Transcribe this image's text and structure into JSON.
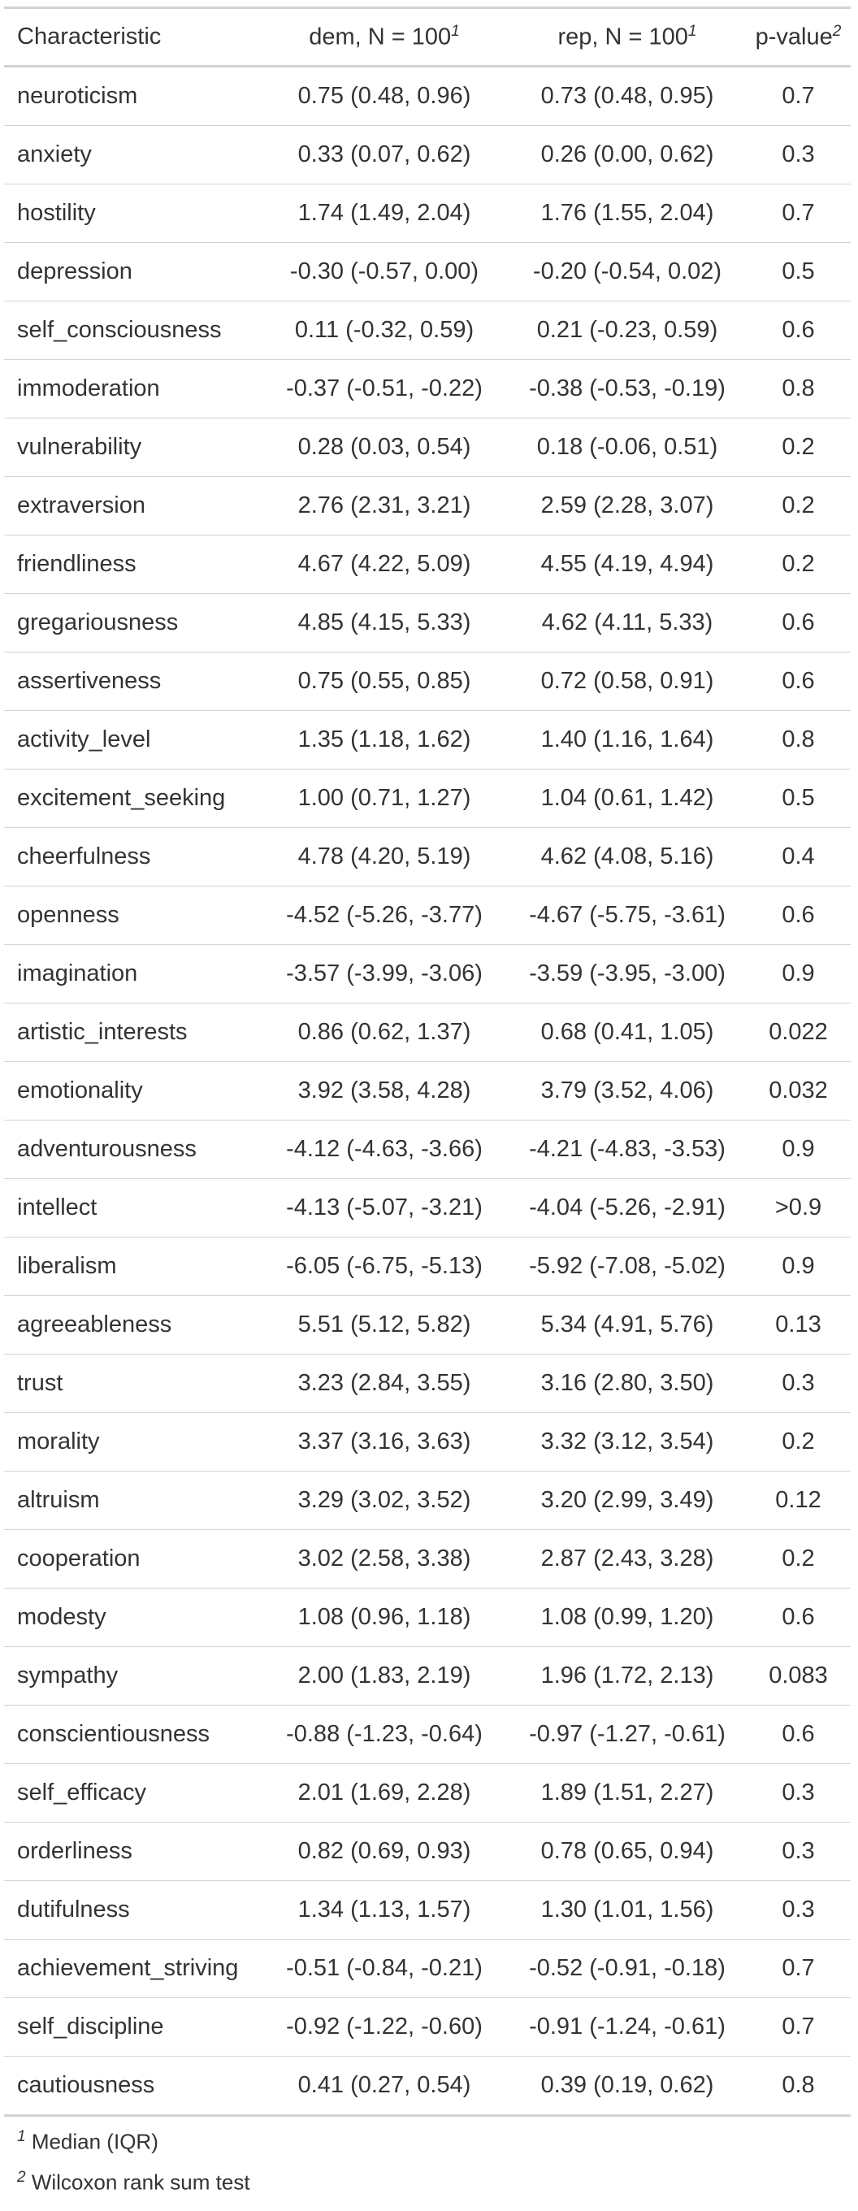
{
  "table": {
    "header": [
      {
        "label": "Characteristic"
      },
      {
        "label": "dem, N = 100",
        "footnote": "1"
      },
      {
        "label": "rep, N = 100",
        "footnote": "1"
      },
      {
        "label": "p-value",
        "footnote": "2"
      }
    ],
    "rows": [
      [
        "neuroticism",
        "0.75 (0.48, 0.96)",
        "0.73 (0.48, 0.95)",
        "0.7"
      ],
      [
        "anxiety",
        "0.33 (0.07, 0.62)",
        "0.26 (0.00, 0.62)",
        "0.3"
      ],
      [
        "hostility",
        "1.74 (1.49, 2.04)",
        "1.76 (1.55, 2.04)",
        "0.7"
      ],
      [
        "depression",
        "-0.30 (-0.57, 0.00)",
        "-0.20 (-0.54, 0.02)",
        "0.5"
      ],
      [
        "self_consciousness",
        "0.11 (-0.32, 0.59)",
        "0.21 (-0.23, 0.59)",
        "0.6"
      ],
      [
        "immoderation",
        "-0.37 (-0.51, -0.22)",
        "-0.38 (-0.53, -0.19)",
        "0.8"
      ],
      [
        "vulnerability",
        "0.28 (0.03, 0.54)",
        "0.18 (-0.06, 0.51)",
        "0.2"
      ],
      [
        "extraversion",
        "2.76 (2.31, 3.21)",
        "2.59 (2.28, 3.07)",
        "0.2"
      ],
      [
        "friendliness",
        "4.67 (4.22, 5.09)",
        "4.55 (4.19, 4.94)",
        "0.2"
      ],
      [
        "gregariousness",
        "4.85 (4.15, 5.33)",
        "4.62 (4.11, 5.33)",
        "0.6"
      ],
      [
        "assertiveness",
        "0.75 (0.55, 0.85)",
        "0.72 (0.58, 0.91)",
        "0.6"
      ],
      [
        "activity_level",
        "1.35 (1.18, 1.62)",
        "1.40 (1.16, 1.64)",
        "0.8"
      ],
      [
        "excitement_seeking",
        "1.00 (0.71, 1.27)",
        "1.04 (0.61, 1.42)",
        "0.5"
      ],
      [
        "cheerfulness",
        "4.78 (4.20, 5.19)",
        "4.62 (4.08, 5.16)",
        "0.4"
      ],
      [
        "openness",
        "-4.52 (-5.26, -3.77)",
        "-4.67 (-5.75, -3.61)",
        "0.6"
      ],
      [
        "imagination",
        "-3.57 (-3.99, -3.06)",
        "-3.59 (-3.95, -3.00)",
        "0.9"
      ],
      [
        "artistic_interests",
        "0.86 (0.62, 1.37)",
        "0.68 (0.41, 1.05)",
        "0.022"
      ],
      [
        "emotionality",
        "3.92 (3.58, 4.28)",
        "3.79 (3.52, 4.06)",
        "0.032"
      ],
      [
        "adventurousness",
        "-4.12 (-4.63, -3.66)",
        "-4.21 (-4.83, -3.53)",
        "0.9"
      ],
      [
        "intellect",
        "-4.13 (-5.07, -3.21)",
        "-4.04 (-5.26, -2.91)",
        ">0.9"
      ],
      [
        "liberalism",
        "-6.05 (-6.75, -5.13)",
        "-5.92 (-7.08, -5.02)",
        "0.9"
      ],
      [
        "agreeableness",
        "5.51 (5.12, 5.82)",
        "5.34 (4.91, 5.76)",
        "0.13"
      ],
      [
        "trust",
        "3.23 (2.84, 3.55)",
        "3.16 (2.80, 3.50)",
        "0.3"
      ],
      [
        "morality",
        "3.37 (3.16, 3.63)",
        "3.32 (3.12, 3.54)",
        "0.2"
      ],
      [
        "altruism",
        "3.29 (3.02, 3.52)",
        "3.20 (2.99, 3.49)",
        "0.12"
      ],
      [
        "cooperation",
        "3.02 (2.58, 3.38)",
        "2.87 (2.43, 3.28)",
        "0.2"
      ],
      [
        "modesty",
        "1.08 (0.96, 1.18)",
        "1.08 (0.99, 1.20)",
        "0.6"
      ],
      [
        "sympathy",
        "2.00 (1.83, 2.19)",
        "1.96 (1.72, 2.13)",
        "0.083"
      ],
      [
        "conscientiousness",
        "-0.88 (-1.23, -0.64)",
        "-0.97 (-1.27, -0.61)",
        "0.6"
      ],
      [
        "self_efficacy",
        "2.01 (1.69, 2.28)",
        "1.89 (1.51, 2.27)",
        "0.3"
      ],
      [
        "orderliness",
        "0.82 (0.69, 0.93)",
        "0.78 (0.65, 0.94)",
        "0.3"
      ],
      [
        "dutifulness",
        "1.34 (1.13, 1.57)",
        "1.30 (1.01, 1.56)",
        "0.3"
      ],
      [
        "achievement_striving",
        "-0.51 (-0.84, -0.21)",
        "-0.52 (-0.91, -0.18)",
        "0.7"
      ],
      [
        "self_discipline",
        "-0.92 (-1.22, -0.60)",
        "-0.91 (-1.24, -0.61)",
        "0.7"
      ],
      [
        "cautiousness",
        "0.41 (0.27, 0.54)",
        "0.39 (0.19, 0.62)",
        "0.8"
      ]
    ]
  },
  "footnotes": [
    {
      "marker": "1",
      "text": "Median (IQR)"
    },
    {
      "marker": "2",
      "text": "Wilcoxon rank sum test"
    }
  ]
}
